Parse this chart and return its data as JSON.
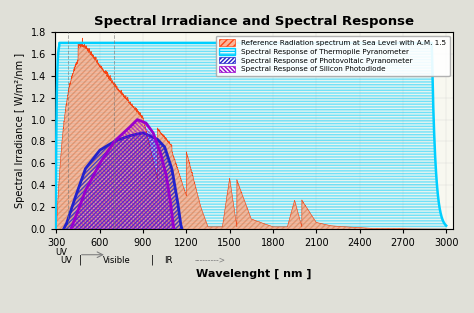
{
  "title": "Spectral Irradiance and Spectral Response",
  "xlabel": "Wavelenght [ nm ]",
  "ylabel": "Spectral Irradiance [ W/m²/nm ]",
  "xlim": [
    290,
    3050
  ],
  "ylim": [
    0,
    1.8
  ],
  "yticks": [
    0.0,
    0.2,
    0.4,
    0.6,
    0.8,
    1.0,
    1.2,
    1.4,
    1.6,
    1.8
  ],
  "xticks": [
    300,
    600,
    900,
    1200,
    1500,
    1800,
    2100,
    2400,
    2700,
    3000
  ],
  "bg_color": "#f8f8f0",
  "legend_labels": [
    "Reference Radiation spectrum at Sea Level with A.M. 1.5",
    "Spectral Response of Thermopile Pyranometer",
    "Spectral Response of Photovoltaic Pyranometer",
    "Spectral Response of Silicon Photodiode"
  ],
  "uv_label": "UV",
  "vis_label": "Visible",
  "ir_label": "IR",
  "ir_arrow": "--------->",
  "uv_line_x": 380,
  "vis_line_x": 700,
  "thermo_color": "#00CFFF",
  "pv_color": "#2222CC",
  "si_color": "#9900CC",
  "solar_fill": "#FFAA88",
  "solar_line": "#FF3300"
}
